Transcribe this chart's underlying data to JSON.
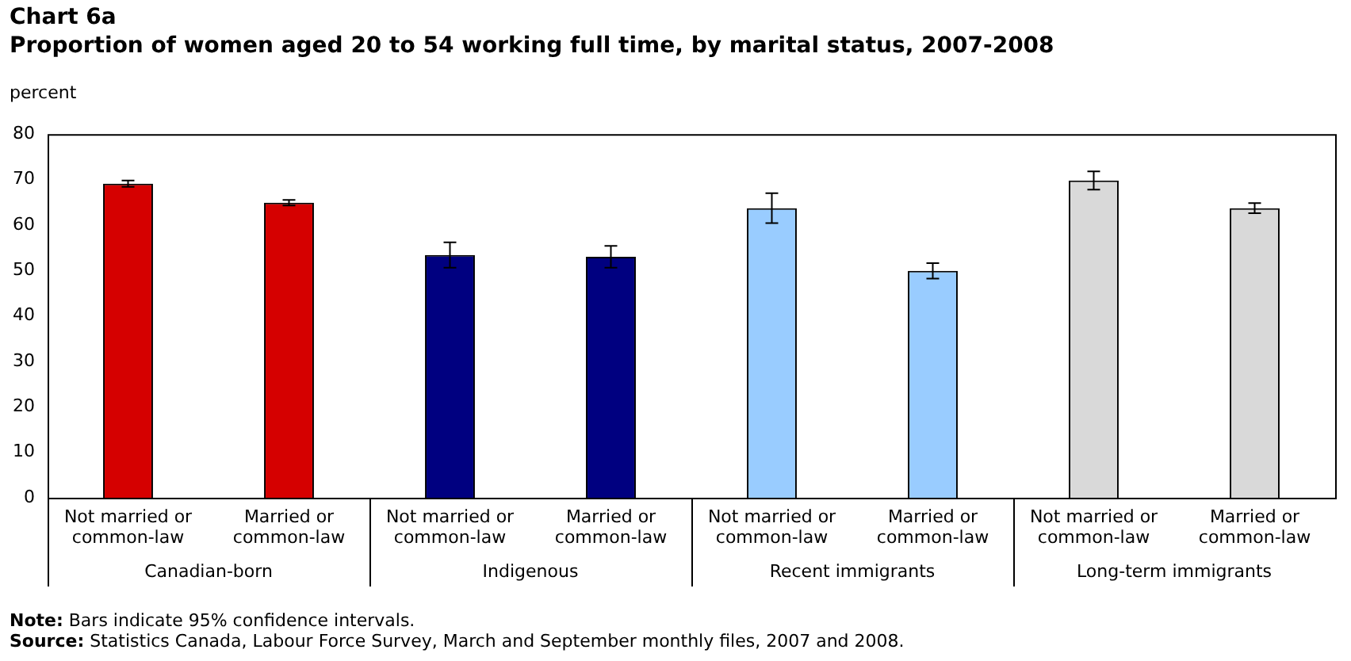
{
  "chart_data": {
    "type": "bar",
    "title": "Chart 6a",
    "subtitle": "Proportion of women aged 20 to 54 working full time, by marital status, 2007-2008",
    "ylabel": "percent",
    "categories": [
      "Not married or common-law",
      "Married or common-law",
      "Not married or common-law",
      "Married or common-law",
      "Not married or common-law",
      "Married or common-law",
      "Not married or common-law",
      "Married or common-law"
    ],
    "values": [
      69.1,
      64.9,
      53.4,
      53.0,
      63.7,
      49.9,
      69.8,
      63.7
    ],
    "errors": [
      0.7,
      0.6,
      2.8,
      2.4,
      3.3,
      1.7,
      2.0,
      1.1
    ],
    "colors": [
      "#d50000",
      "#d50000",
      "#000080",
      "#000080",
      "#99ccff",
      "#99ccff",
      "#d9d9d9",
      "#d9d9d9"
    ],
    "ylim": [
      0,
      80
    ],
    "yticks": [
      0,
      10,
      20,
      30,
      40,
      50,
      60,
      70,
      80
    ],
    "grid": false,
    "legend": false,
    "annotations": [
      "Canadian-born",
      "Indigenous",
      "Recent immigrants",
      "Long-term immigrants",
      "Note: Bars indicate 95% confidence intervals.",
      "Source: Statistics Canada, Labour Force Survey, March and September monthly files, 2007 and 2008."
    ]
  }
}
